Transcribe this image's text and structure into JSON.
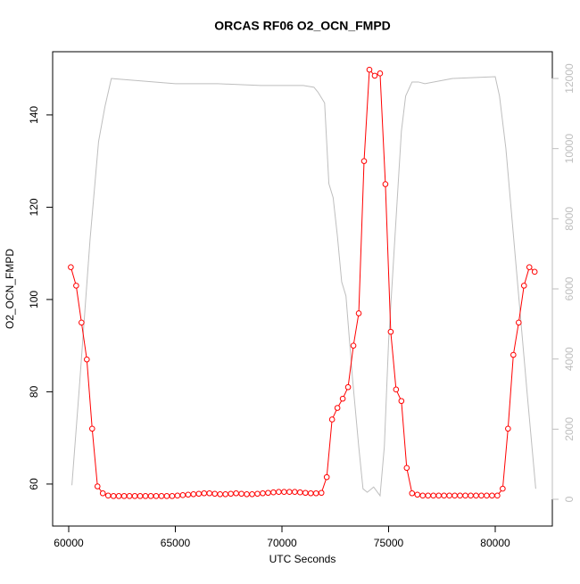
{
  "chart_data": {
    "type": "line",
    "title": "ORCAS RF06 O2_OCN_FMPD",
    "x_label": "UTC Seconds",
    "y_label": "O2_OCN_FMPD",
    "xlim": [
      59247,
      82678
    ],
    "xticks": [
      60000,
      65000,
      70000,
      75000,
      80000
    ],
    "ylim": [
      50.9,
      153.7
    ],
    "yticks": [
      60,
      80,
      100,
      120,
      140
    ],
    "y2lim": [
      -763,
      12763
    ],
    "y2ticks": [
      0,
      2000,
      4000,
      6000,
      8000,
      10000,
      12000
    ],
    "series": [
      {
        "color": "#ff0000",
        "markers": true,
        "x": [
          60100,
          60350,
          60600,
          60850,
          61100,
          61350,
          61600,
          61850,
          62100,
          62350,
          62600,
          62850,
          63100,
          63350,
          63600,
          63850,
          64100,
          64350,
          64600,
          64850,
          65100,
          65350,
          65600,
          65850,
          66100,
          66350,
          66600,
          66850,
          67100,
          67350,
          67600,
          67850,
          68100,
          68350,
          68600,
          68850,
          69100,
          69350,
          69600,
          69850,
          70100,
          70350,
          70600,
          70850,
          71100,
          71350,
          71600,
          71850,
          72100,
          72350,
          72600,
          72850,
          73100,
          73350,
          73600,
          73850,
          74100,
          74350,
          74600,
          74850,
          75100,
          75350,
          75600,
          75850,
          76100,
          76350,
          76600,
          76850,
          77100,
          77350,
          77600,
          77850,
          78100,
          78350,
          78600,
          78850,
          79100,
          79350,
          79600,
          79850,
          80100,
          80350,
          80600,
          80850,
          81100,
          81350,
          81600,
          81850
        ],
        "values": [
          107,
          103,
          95,
          87,
          72,
          59.5,
          58,
          57.5,
          57.4,
          57.4,
          57.4,
          57.4,
          57.4,
          57.4,
          57.4,
          57.4,
          57.4,
          57.4,
          57.4,
          57.4,
          57.5,
          57.6,
          57.7,
          57.8,
          57.9,
          58,
          58,
          57.9,
          57.8,
          57.8,
          57.9,
          58,
          57.9,
          57.8,
          57.8,
          57.9,
          58,
          58.1,
          58.2,
          58.3,
          58.3,
          58.3,
          58.3,
          58.2,
          58.1,
          58,
          58,
          58.1,
          61.5,
          74,
          76.5,
          78.5,
          81,
          90,
          97,
          130,
          149.8,
          148.5,
          149,
          125,
          93,
          80.5,
          78,
          63.5,
          58,
          57.7,
          57.5,
          57.5,
          57.5,
          57.5,
          57.5,
          57.5,
          57.5,
          57.5,
          57.5,
          57.5,
          57.5,
          57.5,
          57.5,
          57.5,
          57.5,
          59,
          72,
          88,
          95,
          103,
          107,
          106
        ]
      },
      {
        "color": "#bebebe",
        "axis": "y2",
        "markers": false,
        "x": [
          60150,
          60500,
          61000,
          61400,
          61700,
          62000,
          63000,
          65000,
          67000,
          69000,
          71000,
          71500,
          71700,
          72000,
          72200,
          72400,
          72600,
          72800,
          73000,
          73300,
          73600,
          73800,
          74000,
          74300,
          74600,
          74800,
          75000,
          75300,
          75600,
          75800,
          76100,
          76400,
          76700,
          78000,
          80000,
          80200,
          80500,
          81000,
          81500,
          81900
        ],
        "values": [
          400,
          3200,
          7400,
          10200,
          11200,
          12000,
          11950,
          11850,
          11850,
          11800,
          11800,
          11750,
          11600,
          11300,
          9000,
          8600,
          7500,
          6200,
          5800,
          3500,
          1500,
          300,
          200,
          350,
          100,
          1500,
          4500,
          7500,
          10500,
          11500,
          11900,
          11900,
          11850,
          12000,
          12050,
          11500,
          10000,
          6500,
          3000,
          300
        ]
      }
    ]
  }
}
